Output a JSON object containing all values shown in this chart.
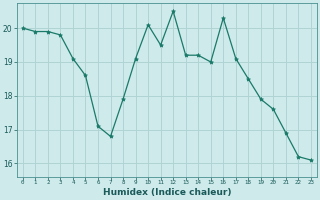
{
  "x": [
    0,
    1,
    2,
    3,
    4,
    5,
    6,
    7,
    8,
    9,
    10,
    11,
    12,
    13,
    14,
    15,
    16,
    17,
    18,
    19,
    20,
    21,
    22,
    23
  ],
  "y": [
    20.0,
    19.9,
    19.9,
    19.8,
    19.1,
    18.6,
    17.1,
    16.8,
    17.9,
    19.1,
    20.1,
    19.5,
    20.5,
    19.2,
    19.2,
    19.0,
    20.3,
    19.1,
    18.5,
    17.9,
    17.6,
    16.9,
    16.2,
    16.1
  ],
  "line_color": "#1a7a6a",
  "marker": "*",
  "marker_size": 3,
  "bg_color": "#ceeaea",
  "grid_color": "#b0d4d4",
  "xlabel": "Humidex (Indice chaleur)",
  "ylabel_ticks": [
    16,
    17,
    18,
    19,
    20
  ],
  "xlim": [
    -0.5,
    23.5
  ],
  "ylim": [
    15.6,
    20.75
  ],
  "title": ""
}
